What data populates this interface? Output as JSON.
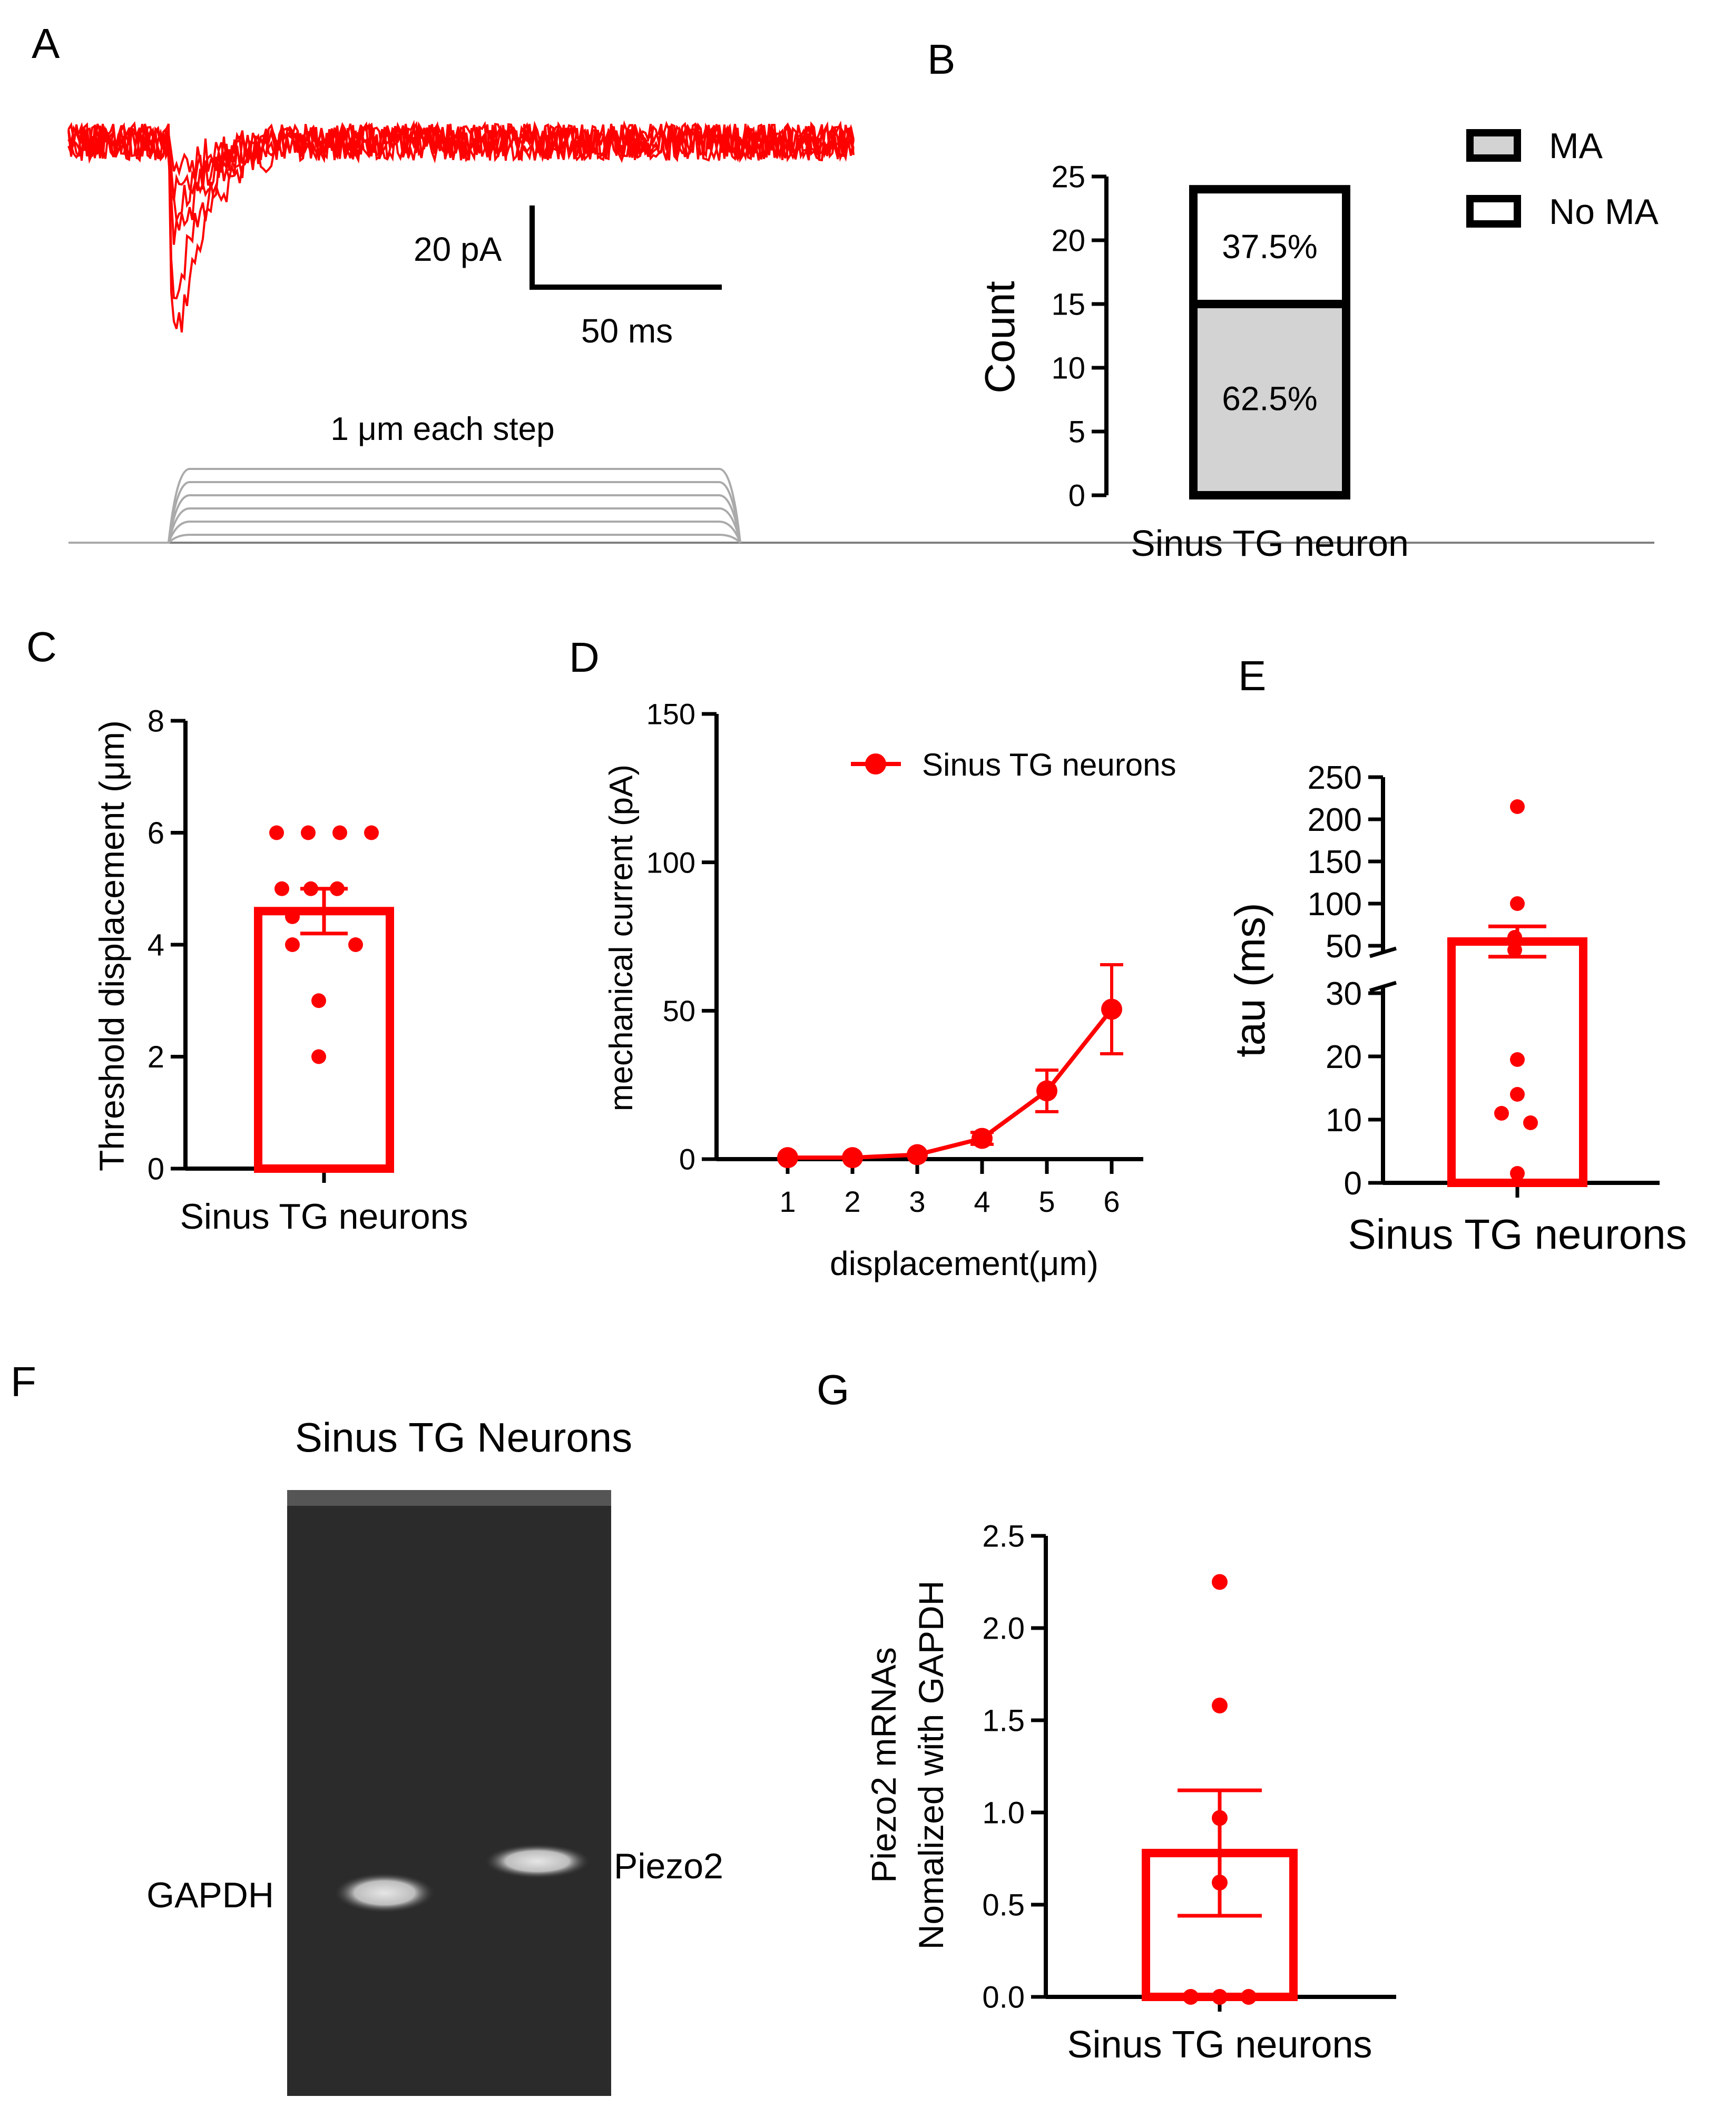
{
  "colors": {
    "red": "#ff0000",
    "black": "#000000",
    "gray_fill": "#d3d3d3",
    "trace_gray": "#aaaaaa",
    "gel_bg": "#2b2b2b",
    "band": "#d8d8d8"
  },
  "panels": {
    "A": {
      "letter": "A",
      "scale_y": "20 pA",
      "scale_x": "50 ms",
      "step_label": "1 μm each step"
    },
    "B": {
      "letter": "B",
      "legend": [
        "MA",
        "No MA"
      ]
    },
    "C": {
      "letter": "C"
    },
    "D": {
      "letter": "D"
    },
    "E": {
      "letter": "E"
    },
    "F": {
      "letter": "F",
      "title": "Sinus TG Neurons",
      "lane_left": "GAPDH",
      "lane_right": "Piezo2"
    },
    "G": {
      "letter": "G"
    }
  },
  "chart_data": [
    {
      "panel": "B",
      "type": "bar",
      "stacked": true,
      "ylabel": "Count",
      "ylim": [
        0,
        25
      ],
      "yticks": [
        0,
        5,
        10,
        15,
        20,
        25
      ],
      "categories": [
        "Sinus TG neuron"
      ],
      "series": [
        {
          "name": "MA",
          "values": [
            15
          ],
          "label": "62.5%",
          "color": "#d3d3d3"
        },
        {
          "name": "No MA",
          "values": [
            9
          ],
          "label": "37.5%",
          "color": "#ffffff"
        }
      ],
      "legend_position": "top-right"
    },
    {
      "panel": "C",
      "type": "bar",
      "ylabel": "Threshold displacement (μm)",
      "ylim": [
        0,
        8
      ],
      "yticks": [
        0,
        2,
        4,
        6,
        8
      ],
      "categories": [
        "Sinus TG neurons"
      ],
      "mean": 4.6,
      "sem": 0.4,
      "points": [
        6,
        6,
        6,
        6,
        5,
        5,
        5,
        4.5,
        4,
        4,
        3,
        2
      ]
    },
    {
      "panel": "D",
      "type": "line",
      "xlabel": "displacement(μm)",
      "ylabel": "mechanical current (pA)",
      "ylim": [
        0,
        150
      ],
      "yticks": [
        0,
        50,
        100,
        150
      ],
      "x": [
        1,
        2,
        3,
        4,
        5,
        6
      ],
      "series": [
        {
          "name": "Sinus TG neurons",
          "values": [
            0.5,
            0.5,
            1.5,
            7,
            23,
            50.5
          ],
          "errors": [
            0.3,
            0.3,
            0.5,
            2,
            7,
            15
          ]
        }
      ],
      "legend_position": "top-right"
    },
    {
      "panel": "E",
      "type": "bar",
      "broken_axis": true,
      "ylabel": "tau (ms)",
      "yticks_lower": [
        0,
        10,
        20,
        30
      ],
      "yticks_upper": [
        50,
        100,
        150,
        200,
        250
      ],
      "categories": [
        "Sinus TG neurons"
      ],
      "mean": 55,
      "sem": 18,
      "points": [
        215,
        100,
        60,
        45,
        19.5,
        14,
        11,
        9.5,
        1.5
      ]
    },
    {
      "panel": "G",
      "type": "bar",
      "ylabel": "Piezo2 mRNAs Nomalized with GAPDH",
      "ylim": [
        0,
        2.5
      ],
      "yticks": [
        "0.0",
        "0.5",
        "1.0",
        "1.5",
        "2.0",
        "2.5"
      ],
      "categories": [
        "Sinus TG neurons"
      ],
      "mean": 0.78,
      "sem": 0.34,
      "points": [
        2.25,
        1.58,
        0.97,
        0.62,
        0,
        0,
        0
      ]
    }
  ]
}
